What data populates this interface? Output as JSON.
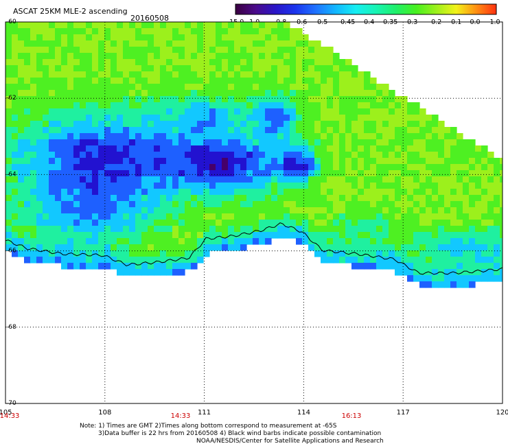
{
  "title": "ASCAT 25KM MLE-2 ascending",
  "date": "20160508",
  "colorbar": {
    "labels": [
      "-15.0",
      "-1.0",
      "-0.8",
      "-0.6",
      "-0.5",
      "-0.45",
      "-0.4",
      "-0.35",
      "-0.3",
      "-0.2",
      "-0.1",
      "0.0",
      "1.0"
    ],
    "colors": [
      "#3a0040",
      "#4b0b8a",
      "#2a16c8",
      "#1b35ee",
      "#1f72ff",
      "#12b7ff",
      "#16eef2",
      "#18f4b4",
      "#1ff06a",
      "#47f01f",
      "#9cf01c",
      "#f2f21a",
      "#ff8f12",
      "#ff3010"
    ]
  },
  "map": {
    "lon_range": [
      105,
      120
    ],
    "lat_range": [
      -70,
      -60
    ],
    "lon_labels": [
      "105",
      "108",
      "111",
      "114",
      "117",
      "120"
    ],
    "lat_labels": [
      "-60",
      "-62",
      "-64",
      "-66",
      "-68",
      "-70"
    ],
    "time_labels": [
      "14:33",
      "14:33",
      "16:13"
    ],
    "time_color": "#cc0000",
    "coastline_color": "#000000"
  },
  "notes": {
    "line1": "Note: 1) Times are GMT 2)Times along bottom correspond to measurement at -65S",
    "line2": "3)Data buffer is 22 hrs from 20160508 4) Black wind barbs indicate possible contamination",
    "line3": "NOAA/NESDIS/Center for Satellite Applications and Research"
  }
}
